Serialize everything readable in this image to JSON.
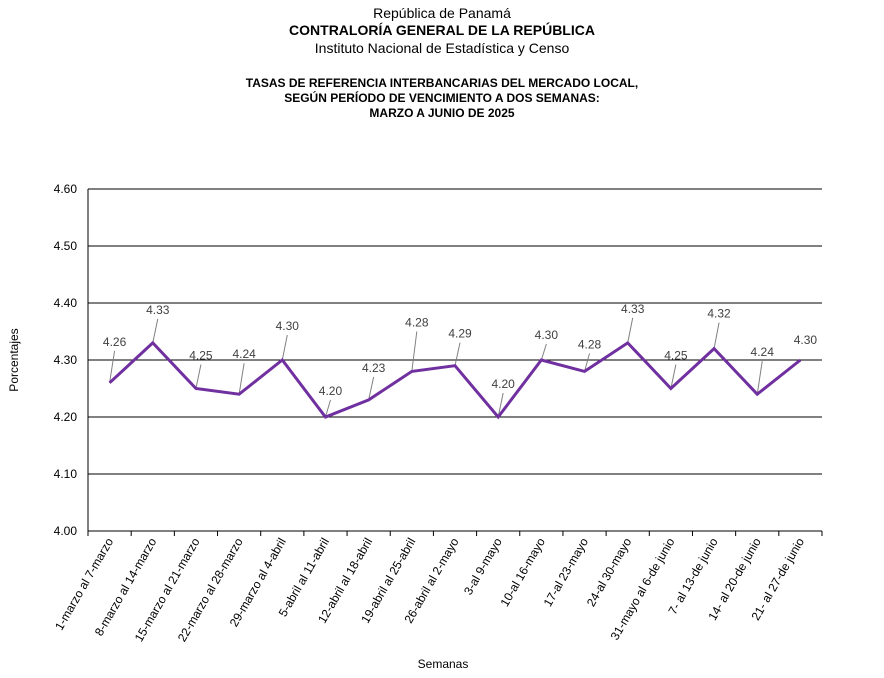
{
  "header": {
    "line1": "República de Panamá",
    "line2": "CONTRALORÍA GENERAL DE LA REPÚBLICA",
    "line3": "Instituto Nacional de Estadística y Censo"
  },
  "chart_data": {
    "type": "line",
    "title": "TASAS DE REFERENCIA  INTERBANCARIAS  DEL  MERCADO  LOCAL,",
    "title_line2": "SEGÚN PERÍODO DE VENCIMIENTO  A DOS SEMANAS:",
    "title_line3": "MARZO  A JUNIO DE 2025",
    "xlabel": "Semanas",
    "ylabel": "Porcentajes",
    "ylim": [
      4.0,
      4.6
    ],
    "yticks": [
      "4.00",
      "4.10",
      "4.20",
      "4.30",
      "4.40",
      "4.50",
      "4.60"
    ],
    "grid": true,
    "line_color": "#7030A0",
    "categories": [
      "1-marzo al 7-marzo",
      "8-marzo al 14-marzo",
      "15-marzo al 21-marzo",
      "22-marzo al 28-marzo",
      "29-marzo al 4-abril",
      "5-abril al 11-abril",
      "12-abril al 18-abril",
      "19-abril al 25-abril",
      "26-abril al 2-mayo",
      "3-al 9-mayo",
      "10-al 16-mayo",
      "17-al 23-mayo",
      "24-al 30-mayo",
      "31-mayo al 6-de junio",
      "7- al 13-de junio",
      "14- al 20-de junio",
      "21- al 27-de junio"
    ],
    "values": [
      4.26,
      4.33,
      4.25,
      4.24,
      4.3,
      4.2,
      4.23,
      4.28,
      4.29,
      4.2,
      4.3,
      4.28,
      4.33,
      4.25,
      4.32,
      4.24,
      4.3
    ],
    "data_labels": [
      "4.26",
      "4.33",
      "4.25",
      "4.24",
      "4.30",
      "4.20",
      "4.23",
      "4.28",
      "4.29",
      "4.20",
      "4.30",
      "4.28",
      "4.33",
      "4.25",
      "4.32",
      "4.24",
      "4.30"
    ]
  }
}
